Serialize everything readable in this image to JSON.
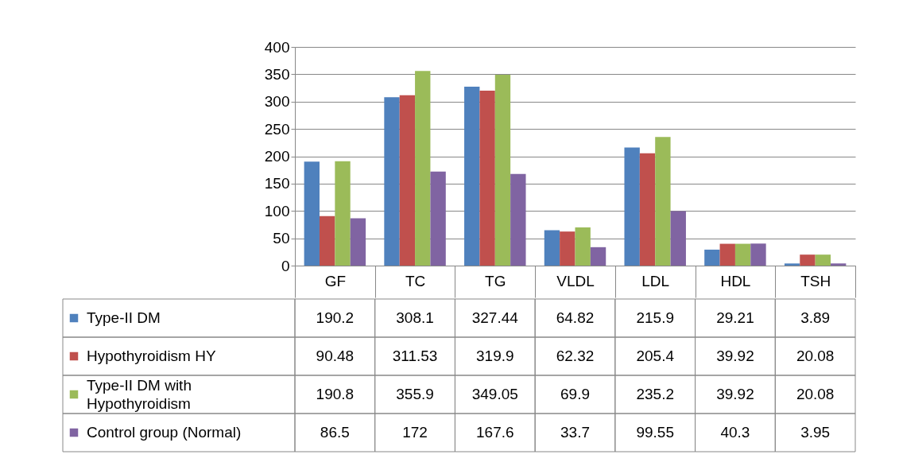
{
  "chart_data": {
    "type": "bar",
    "categories": [
      "GF",
      "TC",
      "TG",
      "VLDL",
      "LDL",
      "HDL",
      "TSH"
    ],
    "series": [
      {
        "name": "Type-II DM",
        "color": "#4f81bd",
        "values": [
          190.2,
          308.1,
          327.44,
          64.82,
          215.9,
          29.21,
          3.89
        ]
      },
      {
        "name": "Hypothyroidism HY",
        "color": "#c0504d",
        "values": [
          90.48,
          311.53,
          319.9,
          62.32,
          205.4,
          39.92,
          20.08
        ]
      },
      {
        "name": "Type-II DM with Hypothyroidism",
        "color": "#9bbb59",
        "values": [
          190.8,
          355.9,
          349.05,
          69.9,
          235.2,
          39.92,
          20.08
        ]
      },
      {
        "name": "Control group (Normal)",
        "color": "#8064a2",
        "values": [
          86.5,
          172,
          167.6,
          33.7,
          99.55,
          40.3,
          3.95
        ]
      }
    ],
    "ylim": [
      0,
      400
    ],
    "yticks": [
      0,
      50,
      100,
      150,
      200,
      250,
      300,
      350,
      400
    ],
    "grid": "y",
    "legend": "bottom",
    "data_labels": true
  }
}
